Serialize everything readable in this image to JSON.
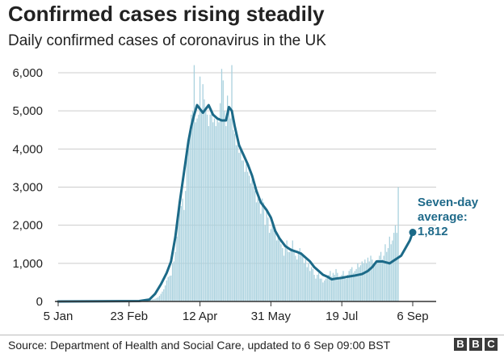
{
  "title": "Confirmed cases rising steadily",
  "subtitle": "Daily confirmed cases of coronavirus in the UK",
  "source": "Source: Department of Health and Social Care, updated to 6 Sep 09:00 BST",
  "logo": {
    "letters": [
      "B",
      "B",
      "C"
    ]
  },
  "colors": {
    "bars": "#a9d1de",
    "line": "#1c6a88",
    "grid": "#cccccc",
    "axis": "#333333",
    "annotation": "#1f6a8a"
  },
  "chart_data": {
    "type": "bar",
    "x_axis_type": "date",
    "x_start": "2020-01-05",
    "x_end": "2020-09-06",
    "x_ticks": [
      {
        "date": "2020-01-05",
        "label": "5 Jan"
      },
      {
        "date": "2020-02-23",
        "label": "23 Feb"
      },
      {
        "date": "2020-04-12",
        "label": "12 Apr"
      },
      {
        "date": "2020-05-31",
        "label": "31 May"
      },
      {
        "date": "2020-07-19",
        "label": "19 Jul"
      },
      {
        "date": "2020-09-06",
        "label": "6 Sep"
      }
    ],
    "y_ticks": [
      {
        "value": 0,
        "label": "0"
      },
      {
        "value": 1000,
        "label": "1,000"
      },
      {
        "value": 2000,
        "label": "2,000"
      },
      {
        "value": 3000,
        "label": "3,000"
      },
      {
        "value": 4000,
        "label": "4,000"
      },
      {
        "value": 5000,
        "label": "5,000"
      },
      {
        "value": 6000,
        "label": "6,000"
      }
    ],
    "ylim": [
      0,
      6000
    ],
    "grid": true,
    "series": [
      {
        "name": "Daily confirmed cases",
        "type": "bar",
        "start_date": "2020-01-05",
        "values": [
          0,
          0,
          0,
          0,
          0,
          0,
          0,
          0,
          0,
          0,
          0,
          0,
          0,
          0,
          0,
          0,
          0,
          0,
          0,
          0,
          0,
          0,
          0,
          0,
          0,
          0,
          0,
          0,
          0,
          0,
          0,
          0,
          0,
          0,
          0,
          0,
          0,
          0,
          0,
          0,
          0,
          0,
          0,
          0,
          0,
          0,
          0,
          0,
          0,
          0,
          0,
          0,
          0,
          0,
          0,
          0,
          0,
          0,
          0,
          13,
          15,
          18,
          22,
          20,
          40,
          55,
          60,
          70,
          90,
          110,
          150,
          200,
          260,
          320,
          420,
          550,
          640,
          670,
          680,
          1000,
          1050,
          1300,
          1700,
          2200,
          2600,
          2500,
          2700,
          2400,
          2900,
          3900,
          4200,
          4400,
          4900,
          5000,
          6200,
          4700,
          4800,
          4900,
          5900,
          5000,
          5700,
          5300,
          5100,
          4900,
          4600,
          4900,
          5000,
          4700,
          4800,
          4600,
          4800,
          4700,
          5200,
          6100,
          5800,
          5000,
          4600,
          5400,
          5000,
          4800,
          6200,
          4500,
          4400,
          4100,
          4100,
          3900,
          4000,
          3700,
          3700,
          3400,
          3600,
          3400,
          3300,
          3100,
          3200,
          3000,
          2900,
          2600,
          2700,
          2600,
          2300,
          2700,
          2600,
          2000,
          2400,
          2200,
          1800,
          1900,
          2000,
          1900,
          1800,
          1600,
          1700,
          1600,
          1500,
          1400,
          1200,
          1400,
          1600,
          1300,
          1300,
          1400,
          1600,
          1300,
          1200,
          1100,
          1300,
          1400,
          1300,
          1200,
          1000,
          1100,
          900,
          1000,
          800,
          900,
          850,
          700,
          600,
          700,
          750,
          600,
          600,
          500,
          550,
          600,
          650,
          700,
          800,
          650,
          750,
          700,
          850,
          750,
          600,
          650,
          700,
          800,
          650,
          600,
          700,
          800,
          850,
          900,
          750,
          800,
          850,
          1000,
          900,
          950,
          1050,
          1000,
          1100,
          1000,
          1150,
          1050,
          1200,
          1100,
          1000,
          950,
          1050,
          1100,
          1200,
          1300,
          1100,
          1200,
          1500,
          1300,
          1400,
          1700,
          1500,
          1600,
          1800,
          2000,
          1800,
          3000
        ]
      },
      {
        "name": "Seven-day average",
        "type": "line",
        "points": [
          [
            "2020-01-05",
            0
          ],
          [
            "2020-03-01",
            10
          ],
          [
            "2020-03-08",
            50
          ],
          [
            "2020-03-12",
            200
          ],
          [
            "2020-03-16",
            450
          ],
          [
            "2020-03-20",
            750
          ],
          [
            "2020-03-23",
            1050
          ],
          [
            "2020-03-26",
            1700
          ],
          [
            "2020-03-29",
            2600
          ],
          [
            "2020-04-01",
            3400
          ],
          [
            "2020-04-04",
            4200
          ],
          [
            "2020-04-06",
            4600
          ],
          [
            "2020-04-08",
            4900
          ],
          [
            "2020-04-10",
            5150
          ],
          [
            "2020-04-12",
            5050
          ],
          [
            "2020-04-14",
            4950
          ],
          [
            "2020-04-16",
            5050
          ],
          [
            "2020-04-18",
            5150
          ],
          [
            "2020-04-21",
            4900
          ],
          [
            "2020-04-24",
            4800
          ],
          [
            "2020-04-27",
            4750
          ],
          [
            "2020-04-30",
            4750
          ],
          [
            "2020-05-02",
            5100
          ],
          [
            "2020-05-04",
            5000
          ],
          [
            "2020-05-06",
            4600
          ],
          [
            "2020-05-09",
            4100
          ],
          [
            "2020-05-12",
            3850
          ],
          [
            "2020-05-15",
            3600
          ],
          [
            "2020-05-18",
            3300
          ],
          [
            "2020-05-21",
            2900
          ],
          [
            "2020-05-24",
            2600
          ],
          [
            "2020-05-28",
            2400
          ],
          [
            "2020-05-31",
            2200
          ],
          [
            "2020-06-03",
            1850
          ],
          [
            "2020-06-06",
            1650
          ],
          [
            "2020-06-10",
            1450
          ],
          [
            "2020-06-14",
            1350
          ],
          [
            "2020-06-18",
            1300
          ],
          [
            "2020-06-21",
            1250
          ],
          [
            "2020-06-24",
            1150
          ],
          [
            "2020-06-27",
            1050
          ],
          [
            "2020-06-30",
            900
          ],
          [
            "2020-07-03",
            800
          ],
          [
            "2020-07-06",
            700
          ],
          [
            "2020-07-09",
            650
          ],
          [
            "2020-07-12",
            580
          ],
          [
            "2020-07-15",
            600
          ],
          [
            "2020-07-19",
            620
          ],
          [
            "2020-07-23",
            650
          ],
          [
            "2020-07-28",
            680
          ],
          [
            "2020-08-02",
            720
          ],
          [
            "2020-08-06",
            800
          ],
          [
            "2020-08-09",
            900
          ],
          [
            "2020-08-12",
            1050
          ],
          [
            "2020-08-16",
            1050
          ],
          [
            "2020-08-21",
            1000
          ],
          [
            "2020-08-25",
            1100
          ],
          [
            "2020-08-29",
            1200
          ],
          [
            "2020-09-01",
            1400
          ],
          [
            "2020-09-04",
            1600
          ],
          [
            "2020-09-06",
            1812
          ]
        ]
      }
    ],
    "annotations": [
      {
        "lines": [
          "Seven-day",
          "average:",
          "1,812"
        ],
        "date": "2020-09-06",
        "value": 1812
      }
    ]
  }
}
